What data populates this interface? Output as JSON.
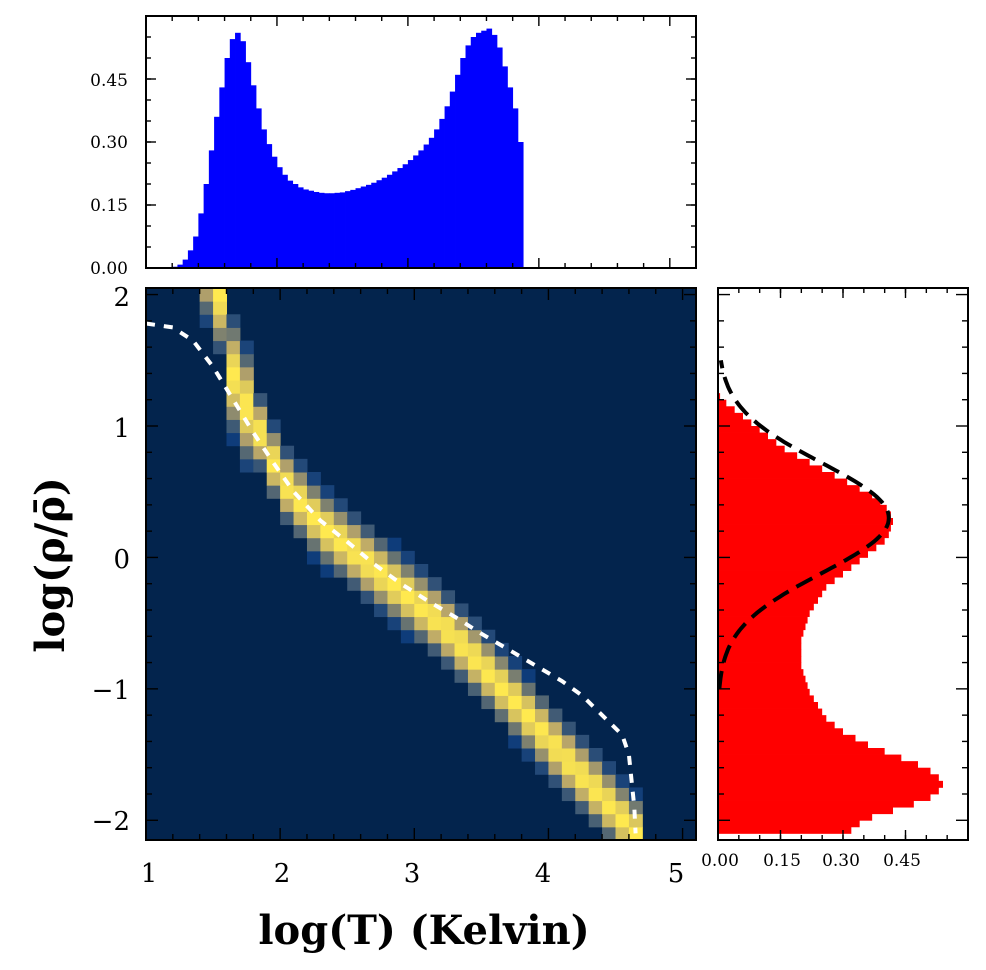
{
  "chart_data": [
    {
      "id": "top-histogram",
      "type": "bar",
      "title": "",
      "xlabel": "",
      "ylabel": "",
      "color": "#0000ff",
      "xlim": [
        1.0,
        5.2
      ],
      "ylim": [
        0,
        0.6
      ],
      "ytick_values": [
        0.0,
        0.15,
        0.3,
        0.45
      ],
      "ytick_labels": [
        "0.00",
        "0.15",
        "0.30",
        "0.45"
      ],
      "bin_start": 1.2,
      "bin_width": 0.04,
      "values": [
        0.003,
        0.008,
        0.02,
        0.042,
        0.075,
        0.13,
        0.2,
        0.28,
        0.36,
        0.43,
        0.5,
        0.545,
        0.56,
        0.54,
        0.49,
        0.435,
        0.38,
        0.33,
        0.295,
        0.265,
        0.24,
        0.222,
        0.208,
        0.2,
        0.192,
        0.187,
        0.184,
        0.181,
        0.179,
        0.178,
        0.178,
        0.179,
        0.18,
        0.183,
        0.186,
        0.19,
        0.194,
        0.198,
        0.203,
        0.209,
        0.215,
        0.222,
        0.23,
        0.238,
        0.247,
        0.257,
        0.268,
        0.28,
        0.294,
        0.31,
        0.33,
        0.355,
        0.385,
        0.42,
        0.46,
        0.5,
        0.53,
        0.55,
        0.56,
        0.565,
        0.57,
        0.555,
        0.525,
        0.48,
        0.43,
        0.38,
        0.3
      ]
    },
    {
      "id": "heatmap-2d",
      "type": "heatmap",
      "title": "",
      "xlabel": "log(T) (Kelvin)",
      "ylabel": "log(ρ/ρ̄)",
      "xlim": [
        1.0,
        5.1
      ],
      "ylim": [
        -2.15,
        2.05
      ],
      "xtick_labels": [
        "1",
        "2",
        "3",
        "4",
        "5"
      ],
      "xtick_values": [
        1,
        2,
        3,
        4,
        5
      ],
      "ytick_labels": [
        "−2",
        "−1",
        "0",
        "1",
        "2"
      ],
      "ytick_values": [
        -2,
        -1,
        0,
        1,
        2
      ],
      "background_color": "#03244d",
      "peak_color": "#ffe94f",
      "ridge": [
        [
          1.55,
          2.0
        ],
        [
          1.6,
          1.5
        ],
        [
          1.75,
          1.15
        ],
        [
          1.9,
          0.85
        ],
        [
          2.0,
          0.6
        ],
        [
          2.3,
          0.25
        ],
        [
          2.6,
          0.0
        ],
        [
          2.9,
          -0.25
        ],
        [
          3.2,
          -0.5
        ],
        [
          3.5,
          -0.82
        ],
        [
          3.8,
          -1.15
        ],
        [
          4.1,
          -1.5
        ],
        [
          4.4,
          -1.82
        ],
        [
          4.65,
          -2.1
        ]
      ],
      "dashed_curve": [
        [
          1.0,
          1.78
        ],
        [
          1.2,
          1.75
        ],
        [
          1.35,
          1.65
        ],
        [
          1.5,
          1.45
        ],
        [
          1.65,
          1.2
        ],
        [
          1.8,
          0.95
        ],
        [
          1.95,
          0.72
        ],
        [
          2.1,
          0.5
        ],
        [
          2.3,
          0.28
        ],
        [
          2.5,
          0.12
        ],
        [
          2.7,
          -0.05
        ],
        [
          2.9,
          -0.2
        ],
        [
          3.1,
          -0.33
        ],
        [
          3.3,
          -0.45
        ],
        [
          3.5,
          -0.58
        ],
        [
          3.7,
          -0.7
        ],
        [
          3.9,
          -0.82
        ],
        [
          4.1,
          -0.94
        ],
        [
          4.25,
          -1.05
        ],
        [
          4.35,
          -1.15
        ],
        [
          4.45,
          -1.25
        ],
        [
          4.55,
          -1.35
        ],
        [
          4.6,
          -1.5
        ],
        [
          4.62,
          -1.7
        ],
        [
          4.64,
          -1.9
        ],
        [
          4.65,
          -2.1
        ]
      ]
    },
    {
      "id": "right-histogram",
      "type": "bar",
      "orientation": "horizontal",
      "title": "",
      "xlabel": "",
      "ylabel": "",
      "color": "#ff0000",
      "xlim": [
        0,
        0.6
      ],
      "ylim": [
        -2.15,
        2.05
      ],
      "xtick_values": [
        0.0,
        0.15,
        0.3,
        0.45
      ],
      "xtick_labels": [
        "0.00",
        "0.15",
        "0.30",
        "0.45"
      ],
      "bin_start": -2.1,
      "bin_width": 0.05,
      "values": [
        0.32,
        0.34,
        0.37,
        0.42,
        0.47,
        0.51,
        0.53,
        0.54,
        0.53,
        0.51,
        0.48,
        0.44,
        0.4,
        0.36,
        0.33,
        0.3,
        0.28,
        0.26,
        0.25,
        0.24,
        0.23,
        0.22,
        0.215,
        0.21,
        0.205,
        0.2,
        0.2,
        0.2,
        0.2,
        0.2,
        0.205,
        0.21,
        0.215,
        0.22,
        0.23,
        0.24,
        0.25,
        0.26,
        0.28,
        0.3,
        0.32,
        0.34,
        0.36,
        0.38,
        0.4,
        0.41,
        0.415,
        0.42,
        0.415,
        0.405,
        0.39,
        0.37,
        0.34,
        0.31,
        0.28,
        0.25,
        0.22,
        0.19,
        0.16,
        0.14,
        0.12,
        0.1,
        0.08,
        0.06,
        0.04,
        0.02,
        0.005,
        0.0
      ],
      "fit_curve": {
        "style": "dashed",
        "color": "#000000",
        "mean": 0.3,
        "sigma": 0.42,
        "peak": 0.41,
        "yrange": [
          -1.0,
          1.5
        ]
      }
    }
  ]
}
